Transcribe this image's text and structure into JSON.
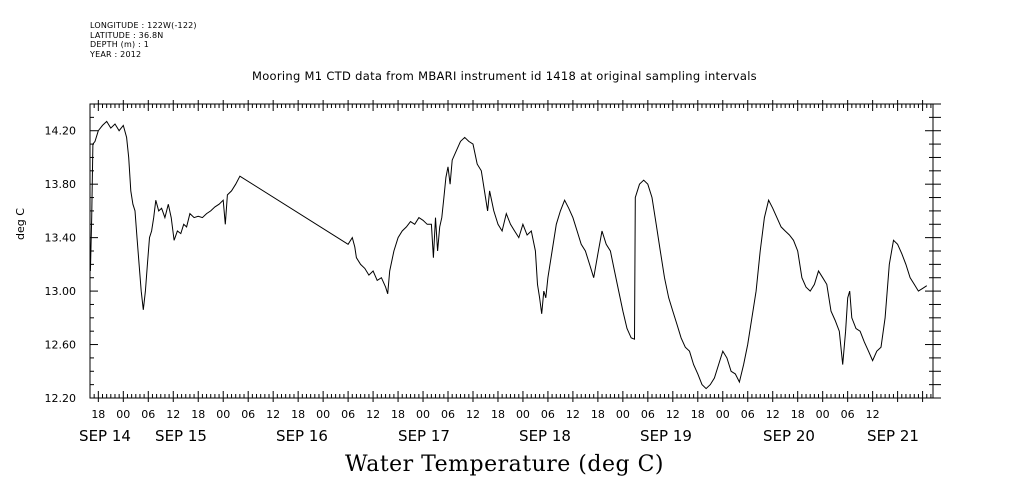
{
  "header": {
    "meta_lines": [
      "LONGITUDE : 122W(-122)",
      "LATITUDE : 36.8N",
      "DEPTH (m) : 1",
      "YEAR : 2012"
    ],
    "title": "Mooring M1 CTD data from MBARI instrument id 1418 at original sampling intervals"
  },
  "chart_data": {
    "type": "line",
    "title": "Mooring M1 CTD data from MBARI instrument id 1418 at original sampling intervals",
    "xlabel": "Water Temperature (deg C)",
    "ylabel": "deg C",
    "ylim": [
      12.2,
      14.4
    ],
    "xlim_hours": [
      -8,
      194.5
    ],
    "y_ticks": [
      "12.20",
      "12.60",
      "13.00",
      "13.40",
      "13.80",
      "14.20"
    ],
    "x_hour_labels": [
      "18",
      "00",
      "06",
      "12",
      "18",
      "00",
      "06",
      "12",
      "18",
      "00",
      "06",
      "12",
      "18",
      "00",
      "06",
      "12",
      "18",
      "00",
      "06",
      "12",
      "18",
      "00",
      "06",
      "12",
      "18",
      "00",
      "06",
      "12",
      "18",
      "00",
      "06",
      "12"
    ],
    "x_day_labels": [
      "SEP 14",
      "SEP 15",
      "SEP 16",
      "SEP 17",
      "SEP 18",
      "SEP 19",
      "SEP 20",
      "SEP 21"
    ],
    "x_unit": "hours since SEP 14 00",
    "series": [
      {
        "values": [
          [
            -7.9,
            13.15
          ],
          [
            -7.6,
            13.55
          ],
          [
            -7.3,
            14.1
          ],
          [
            -6.8,
            14.12
          ],
          [
            -6.0,
            14.2
          ],
          [
            -5.0,
            14.24
          ],
          [
            -4.0,
            14.27
          ],
          [
            -3.0,
            14.22
          ],
          [
            -2.0,
            14.25
          ],
          [
            -1.0,
            14.2
          ],
          [
            0.0,
            14.24
          ],
          [
            0.8,
            14.15
          ],
          [
            1.3,
            14.0
          ],
          [
            1.8,
            13.75
          ],
          [
            2.3,
            13.65
          ],
          [
            2.8,
            13.6
          ],
          [
            3.3,
            13.4
          ],
          [
            3.8,
            13.2
          ],
          [
            4.3,
            13.0
          ],
          [
            4.8,
            12.86
          ],
          [
            5.3,
            13.0
          ],
          [
            5.8,
            13.2
          ],
          [
            6.3,
            13.4
          ],
          [
            6.8,
            13.45
          ],
          [
            7.3,
            13.55
          ],
          [
            7.8,
            13.68
          ],
          [
            8.5,
            13.6
          ],
          [
            9.2,
            13.62
          ],
          [
            10.0,
            13.55
          ],
          [
            10.8,
            13.65
          ],
          [
            11.5,
            13.55
          ],
          [
            12.2,
            13.38
          ],
          [
            13.0,
            13.45
          ],
          [
            13.8,
            13.43
          ],
          [
            14.5,
            13.5
          ],
          [
            15.2,
            13.48
          ],
          [
            16.0,
            13.58
          ],
          [
            17.0,
            13.55
          ],
          [
            18.0,
            13.56
          ],
          [
            19.0,
            13.55
          ],
          [
            20.0,
            13.58
          ],
          [
            21.0,
            13.6
          ],
          [
            22.0,
            13.63
          ],
          [
            23.0,
            13.65
          ],
          [
            24.0,
            13.68
          ],
          [
            24.5,
            13.5
          ],
          [
            25.0,
            13.72
          ],
          [
            26.0,
            13.75
          ],
          [
            27.0,
            13.8
          ],
          [
            28.0,
            13.86
          ],
          [
            54.0,
            13.35
          ],
          [
            55.0,
            13.4
          ],
          [
            55.6,
            13.33
          ],
          [
            56.0,
            13.25
          ],
          [
            57.0,
            13.2
          ],
          [
            58.0,
            13.17
          ],
          [
            59.0,
            13.12
          ],
          [
            60.0,
            13.15
          ],
          [
            61.0,
            13.08
          ],
          [
            62.0,
            13.1
          ],
          [
            63.0,
            13.03
          ],
          [
            63.5,
            12.98
          ],
          [
            64.0,
            13.15
          ],
          [
            65.0,
            13.3
          ],
          [
            66.0,
            13.4
          ],
          [
            67.0,
            13.45
          ],
          [
            68.0,
            13.48
          ],
          [
            69.0,
            13.52
          ],
          [
            70.0,
            13.5
          ],
          [
            71.0,
            13.55
          ],
          [
            72.0,
            13.53
          ],
          [
            73.0,
            13.5
          ],
          [
            74.0,
            13.5
          ],
          [
            74.5,
            13.25
          ],
          [
            75.0,
            13.55
          ],
          [
            75.5,
            13.3
          ],
          [
            76.0,
            13.48
          ],
          [
            76.5,
            13.55
          ],
          [
            77.0,
            13.7
          ],
          [
            77.5,
            13.85
          ],
          [
            78.0,
            13.93
          ],
          [
            78.5,
            13.8
          ],
          [
            79.0,
            13.98
          ],
          [
            80.0,
            14.05
          ],
          [
            81.0,
            14.12
          ],
          [
            82.0,
            14.15
          ],
          [
            83.0,
            14.12
          ],
          [
            84.0,
            14.1
          ],
          [
            85.0,
            13.95
          ],
          [
            86.0,
            13.9
          ],
          [
            87.0,
            13.7
          ],
          [
            87.5,
            13.6
          ],
          [
            88.0,
            13.75
          ],
          [
            89.0,
            13.6
          ],
          [
            90.0,
            13.5
          ],
          [
            91.0,
            13.45
          ],
          [
            92.0,
            13.58
          ],
          [
            93.0,
            13.5
          ],
          [
            94.0,
            13.45
          ],
          [
            95.0,
            13.4
          ],
          [
            96.0,
            13.5
          ],
          [
            97.0,
            13.42
          ],
          [
            98.0,
            13.45
          ],
          [
            99.0,
            13.3
          ],
          [
            99.5,
            13.05
          ],
          [
            100.0,
            12.95
          ],
          [
            100.5,
            12.83
          ],
          [
            101.0,
            13.0
          ],
          [
            101.5,
            12.95
          ],
          [
            102.0,
            13.1
          ],
          [
            103.0,
            13.3
          ],
          [
            104.0,
            13.5
          ],
          [
            105.0,
            13.6
          ],
          [
            106.0,
            13.68
          ],
          [
            107.0,
            13.62
          ],
          [
            108.0,
            13.55
          ],
          [
            109.0,
            13.45
          ],
          [
            110.0,
            13.35
          ],
          [
            111.0,
            13.3
          ],
          [
            112.0,
            13.2
          ],
          [
            113.0,
            13.1
          ],
          [
            114.0,
            13.28
          ],
          [
            115.0,
            13.45
          ],
          [
            116.0,
            13.35
          ],
          [
            117.0,
            13.3
          ],
          [
            118.0,
            13.15
          ],
          [
            119.0,
            13.0
          ],
          [
            120.0,
            12.85
          ],
          [
            121.0,
            12.72
          ],
          [
            122.0,
            12.65
          ],
          [
            122.8,
            12.64
          ],
          [
            123.0,
            13.7
          ],
          [
            124.0,
            13.8
          ],
          [
            125.0,
            13.83
          ],
          [
            126.0,
            13.8
          ],
          [
            127.0,
            13.7
          ],
          [
            128.0,
            13.5
          ],
          [
            129.0,
            13.3
          ],
          [
            130.0,
            13.1
          ],
          [
            131.0,
            12.95
          ],
          [
            132.0,
            12.85
          ],
          [
            133.0,
            12.75
          ],
          [
            134.0,
            12.65
          ],
          [
            135.0,
            12.58
          ],
          [
            136.0,
            12.55
          ],
          [
            137.0,
            12.45
          ],
          [
            138.0,
            12.38
          ],
          [
            139.0,
            12.3
          ],
          [
            140.0,
            12.27
          ],
          [
            141.0,
            12.3
          ],
          [
            142.0,
            12.35
          ],
          [
            143.0,
            12.45
          ],
          [
            144.0,
            12.55
          ],
          [
            145.0,
            12.5
          ],
          [
            146.0,
            12.4
          ],
          [
            147.0,
            12.38
          ],
          [
            148.0,
            12.32
          ],
          [
            149.0,
            12.45
          ],
          [
            150.0,
            12.6
          ],
          [
            151.0,
            12.8
          ],
          [
            152.0,
            13.0
          ],
          [
            153.0,
            13.3
          ],
          [
            154.0,
            13.55
          ],
          [
            155.0,
            13.68
          ],
          [
            156.0,
            13.62
          ],
          [
            157.0,
            13.55
          ],
          [
            158.0,
            13.48
          ],
          [
            159.0,
            13.45
          ],
          [
            160.0,
            13.42
          ],
          [
            161.0,
            13.38
          ],
          [
            162.0,
            13.3
          ],
          [
            163.0,
            13.1
          ],
          [
            164.0,
            13.03
          ],
          [
            165.0,
            13.0
          ],
          [
            166.0,
            13.05
          ],
          [
            167.0,
            13.15
          ],
          [
            168.0,
            13.1
          ],
          [
            169.0,
            13.05
          ],
          [
            170.0,
            12.85
          ],
          [
            171.0,
            12.78
          ],
          [
            172.0,
            12.7
          ],
          [
            172.8,
            12.45
          ],
          [
            173.5,
            12.7
          ],
          [
            174.0,
            12.95
          ],
          [
            174.5,
            13.0
          ],
          [
            175.0,
            12.8
          ],
          [
            176.0,
            12.72
          ],
          [
            177.0,
            12.7
          ],
          [
            178.0,
            12.62
          ],
          [
            179.0,
            12.55
          ],
          [
            180.0,
            12.48
          ],
          [
            181.0,
            12.55
          ],
          [
            182.0,
            12.58
          ],
          [
            183.0,
            12.8
          ],
          [
            184.0,
            13.2
          ],
          [
            185.0,
            13.38
          ],
          [
            186.0,
            13.35
          ],
          [
            187.0,
            13.28
          ],
          [
            188.0,
            13.2
          ],
          [
            189.0,
            13.1
          ],
          [
            190.0,
            13.05
          ],
          [
            191.0,
            13.0
          ],
          [
            192.0,
            13.02
          ],
          [
            193.0,
            13.04
          ]
        ]
      }
    ]
  }
}
